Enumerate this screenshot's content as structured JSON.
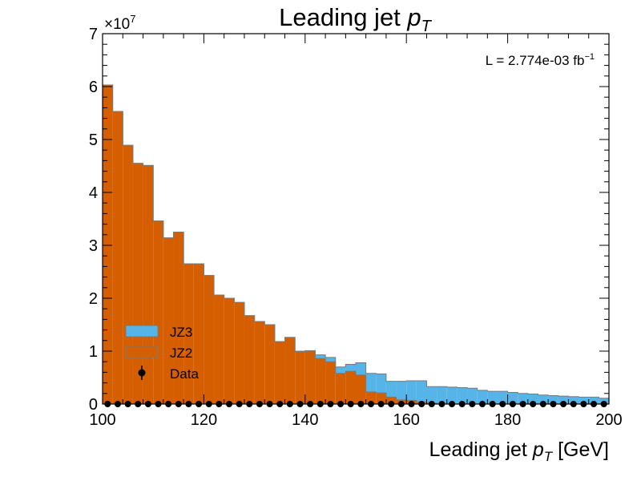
{
  "chart_data": {
    "type": "histogram",
    "title": "Leading jet",
    "title_symbol": "p",
    "title_symbol_sub": "T",
    "xlabel": "Leading jet",
    "xlabel_symbol": "p",
    "xlabel_symbol_sub": "T",
    "xlabel_unit": "[GeV]",
    "ylabel": "",
    "y_multiplier_base": "×10",
    "y_multiplier_exp": "7",
    "xlim": [
      100,
      200
    ],
    "ylim": [
      0,
      70000000
    ],
    "x_ticks": [
      100,
      120,
      140,
      160,
      180,
      200
    ],
    "y_ticks": [
      0,
      1,
      2,
      3,
      4,
      5,
      6,
      7
    ],
    "y_tick_scale": 10000000,
    "luminosity_text": "L = 2.774e-03 fb",
    "luminosity_exp": "−1",
    "legend_position": "lower-left",
    "bin_edges": [
      100,
      102,
      104,
      106,
      108,
      110,
      112,
      114,
      116,
      118,
      120,
      122,
      124,
      126,
      128,
      130,
      132,
      134,
      136,
      138,
      140,
      142,
      144,
      146,
      148,
      150,
      152,
      154,
      156,
      158,
      160,
      162,
      164,
      166,
      168,
      170,
      172,
      174,
      176,
      178,
      180,
      182,
      184,
      186,
      188,
      190,
      192,
      194,
      196,
      198,
      200
    ],
    "series": [
      {
        "name": "JZ2",
        "color": "#d55e00",
        "edge_color": "#7a7a7a",
        "values": [
          60300000,
          55300000,
          48900000,
          45500000,
          45100000,
          34600000,
          31400000,
          32500000,
          26500000,
          26500000,
          24300000,
          20600000,
          20000000,
          19200000,
          16700000,
          15600000,
          15000000,
          11800000,
          12600000,
          9900000,
          10000000,
          8600000,
          8000000,
          5800000,
          6200000,
          5500000,
          2300000,
          2100000,
          1300000,
          800000,
          700000,
          400000,
          200000,
          0,
          0,
          0,
          0,
          0,
          0,
          0,
          0,
          0,
          0,
          0,
          0,
          0,
          0,
          0,
          0,
          0
        ]
      },
      {
        "name": "JZ3",
        "color": "#56b4e9",
        "edge_color": "#7a7a7a",
        "values": [
          0,
          0,
          0,
          0,
          0,
          0,
          0,
          0,
          0,
          0,
          0,
          0,
          0,
          0,
          0,
          0,
          0,
          0,
          0,
          100000,
          100000,
          700000,
          800000,
          1200000,
          1300000,
          2300000,
          3500000,
          3600000,
          3000000,
          3500000,
          3700000,
          4000000,
          3100000,
          3300000,
          3200000,
          3100000,
          3000000,
          2600000,
          2400000,
          2400000,
          2200000,
          2000000,
          1900000,
          1700000,
          1600000,
          1500000,
          1400000,
          1300000,
          1300000,
          1100000
        ]
      },
      {
        "name": "Data",
        "marker": "point",
        "color": "#000000",
        "values": [
          0,
          0,
          0,
          0,
          0,
          0,
          0,
          0,
          0,
          0,
          0,
          0,
          0,
          0,
          0,
          0,
          0,
          0,
          0,
          0,
          0,
          0,
          0,
          0,
          0,
          0,
          0,
          0,
          0,
          0,
          0,
          0,
          0,
          0,
          0,
          0,
          0,
          0,
          0,
          0,
          0,
          0,
          0,
          0,
          0,
          0,
          0,
          0,
          0,
          0
        ]
      }
    ],
    "legend": [
      {
        "label": "JZ3",
        "style": "fill",
        "color": "#56b4e9"
      },
      {
        "label": "JZ2",
        "style": "fill",
        "color": "#d55e00"
      },
      {
        "label": "Data",
        "style": "point",
        "color": "#000000"
      }
    ]
  }
}
